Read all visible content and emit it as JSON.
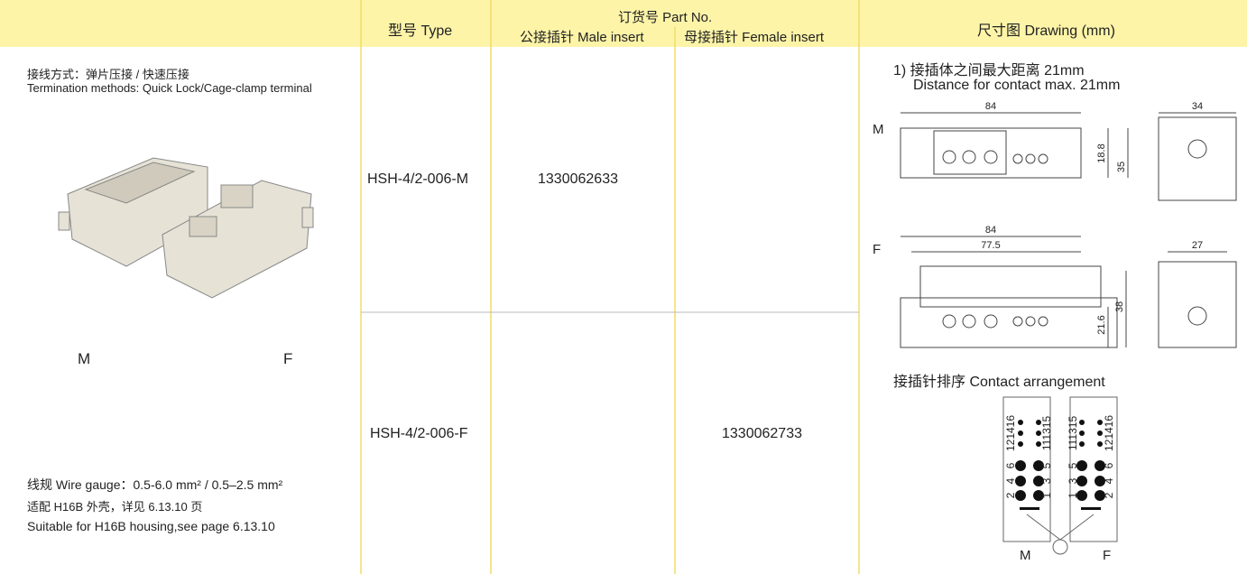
{
  "header": {
    "type": "型号 Type",
    "part_no": "订货号 Part No.",
    "male": "公接插针 Male insert",
    "female": "母接插针 Female insert",
    "drawing": "尺寸图 Drawing (mm)"
  },
  "left": {
    "termination_cn": "接线方式：弹片压接 / 快速压接",
    "termination_en": "Termination methods: Quick Lock/Cage-clamp terminal",
    "label_m": "M",
    "label_f": "F",
    "wire_gauge": "线规 Wire gauge：0.5-6.0 mm² / 0.5–2.5 mm²",
    "housing_cn": "适配 H16B 外壳，详见 6.13.10 页",
    "housing_en": "Suitable for H16B housing,see page 6.13.10"
  },
  "rows": [
    {
      "type": "HSH-4/2-006-M",
      "male": "1330062633"
    },
    {
      "type": "HSH-4/2-006-F",
      "female": "1330062733"
    }
  ],
  "drawing": {
    "note_cn": "1) 接插体之间最大距离 21mm",
    "note_en": "Distance for contact max. 21mm",
    "male": {
      "label": "M",
      "width": "84",
      "side_width": "34",
      "height_inner": "18.8",
      "height": "35"
    },
    "female": {
      "label": "F",
      "width": "84",
      "width_inner": "77.5",
      "side_width": "27",
      "height_inner": "21.6",
      "height": "38"
    },
    "contact_title": "接插针排序 Contact arrangement",
    "male_pins_left": [
      "2",
      "4",
      "6",
      "121416"
    ],
    "male_pins_right": [
      "1",
      "3",
      "5",
      "111315"
    ],
    "female_pins_left": [
      "1",
      "3",
      "5",
      "111315"
    ],
    "female_pins_right": [
      "2",
      "4",
      "6",
      "121416"
    ],
    "bottom_m": "M",
    "bottom_f": "F"
  }
}
